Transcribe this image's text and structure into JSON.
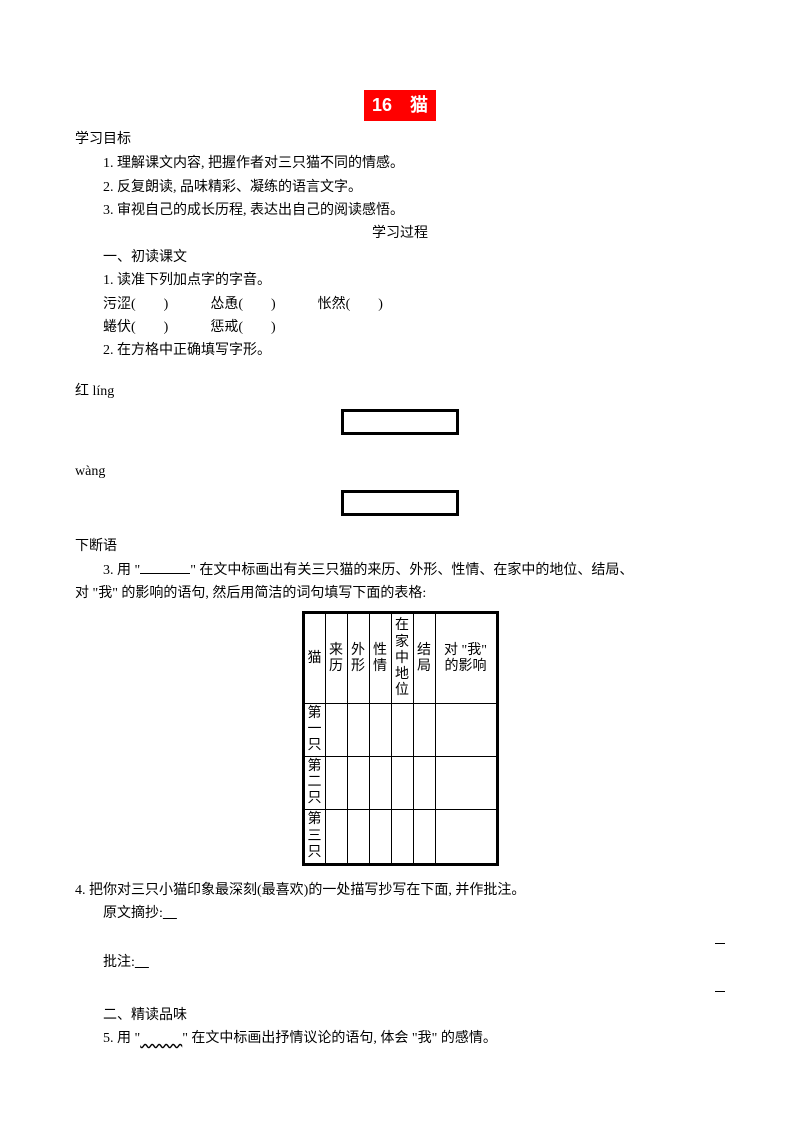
{
  "title": "16　猫",
  "goal_label": "学习目标",
  "goals": [
    "1. 理解课文内容, 把握作者对三只猫不同的情感。",
    "2. 反复朗读, 品味精彩、凝练的语言文字。",
    "3. 审视自己的成长历程, 表达出自己的阅读感悟。"
  ],
  "process_label": "学习过程",
  "s1_title": "一、初读课文",
  "q1_title": "1. 读准下列加点字的字音。",
  "q1_line1": "污涩(　　)　　　怂恿(　　)　　　怅然(　　)",
  "q1_line2": "蜷伏(　　)　　　惩戒(　　)",
  "q2_title": "2. 在方格中正确填写字形。",
  "pinyin1": "红 líng",
  "pinyin2": "wàng",
  "after_box": "下断语",
  "q3_a": "3. 用 \"",
  "q3_b": "\" 在文中标画出有关三只猫的来历、外形、性情、在家中的地位、结局、",
  "q3_c": "对 \"我\" 的影响的语句, 然后用简洁的词句填写下面的表格:",
  "table": {
    "h0": "猫",
    "h1": "来历",
    "h2": "外形",
    "h3": "性情",
    "h4": "在家中地位",
    "h5": "结局",
    "h6a": "对 \"我\"",
    "h6b": "的影响",
    "r1": "第一只",
    "r2": "第二只",
    "r3": "第三只"
  },
  "q4_title": "4. 把你对三只小猫印象最深刻(最喜欢)的一处描写抄写在下面, 并作批注。",
  "q4_a": "原文摘抄:",
  "q4_b": "批注:",
  "s2_title": "二、精读品味",
  "q5_a": "5. 用 \"",
  "q5_u": "　　　",
  "q5_b": "\" 在文中标画出抒情议论的语句, 体会 \"我\" 的感情。"
}
